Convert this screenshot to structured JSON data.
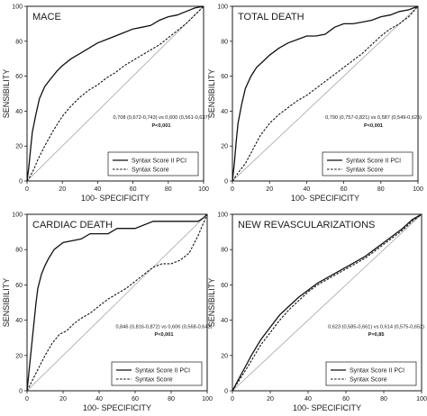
{
  "chart_data": [
    {
      "type": "line",
      "title": "MACE",
      "xlabel": "100- SPECIFICITY",
      "ylabel": "SENSIBILITY",
      "xlim": [
        0,
        100
      ],
      "ylim": [
        0,
        100
      ],
      "xticks": [
        "0",
        "20",
        "40",
        "60",
        "80",
        "100"
      ],
      "yticks": [
        "0",
        "20",
        "40",
        "60",
        "80",
        "100"
      ],
      "annotation": "0,708 (0,672-0,743) vs 0,600 (0,561-0,637)",
      "p_value": "P<0,001",
      "legend_position": "bottom-right",
      "series": [
        {
          "name": "Syntax Score II PCI",
          "style": "solid",
          "x": [
            0,
            1,
            2,
            3,
            5,
            7,
            10,
            13,
            17,
            20,
            25,
            30,
            35,
            40,
            45,
            50,
            55,
            60,
            65,
            70,
            75,
            80,
            85,
            90,
            95,
            100
          ],
          "y": [
            0,
            8,
            18,
            28,
            38,
            47,
            54,
            58,
            63,
            66,
            70,
            73,
            76,
            79,
            81,
            83,
            85,
            87,
            88,
            89,
            92,
            94,
            95,
            97,
            99,
            100
          ]
        },
        {
          "name": "Syntax Score",
          "style": "dashed",
          "x": [
            0,
            2,
            4,
            6,
            10,
            15,
            20,
            25,
            30,
            35,
            40,
            45,
            50,
            55,
            60,
            65,
            70,
            75,
            80,
            85,
            90,
            95,
            100
          ],
          "y": [
            0,
            3,
            7,
            12,
            20,
            29,
            37,
            43,
            48,
            52,
            55,
            59,
            62,
            66,
            69,
            72,
            75,
            78,
            82,
            86,
            90,
            95,
            100
          ]
        }
      ]
    },
    {
      "type": "line",
      "title": "TOTAL DEATH",
      "xlabel": "100- SPECIFICITY",
      "ylabel": "SENSIBILITY",
      "xlim": [
        0,
        100
      ],
      "ylim": [
        0,
        100
      ],
      "xticks": [
        "0",
        "20",
        "40",
        "60",
        "80",
        "100"
      ],
      "yticks": [
        "0",
        "20",
        "40",
        "60",
        "80",
        "100"
      ],
      "annotation": "0,790 (0,757-0,821) vs 0,587 (0,549-0,625)",
      "p_value": "P<0,001",
      "legend_position": "bottom-right",
      "series": [
        {
          "name": "Syntax Score II PCI",
          "style": "solid",
          "x": [
            0,
            1,
            2,
            3,
            5,
            7,
            10,
            13,
            16,
            20,
            25,
            30,
            35,
            40,
            45,
            50,
            55,
            60,
            65,
            70,
            75,
            80,
            85,
            90,
            95,
            100
          ],
          "y": [
            0,
            10,
            22,
            33,
            44,
            53,
            60,
            65,
            68,
            72,
            76,
            79,
            81,
            83,
            83,
            84,
            88,
            90,
            90,
            91,
            92,
            94,
            95,
            97,
            98,
            100
          ]
        },
        {
          "name": "Syntax Score",
          "style": "dashed",
          "x": [
            0,
            2,
            4,
            7,
            10,
            15,
            20,
            25,
            30,
            35,
            40,
            45,
            50,
            55,
            60,
            65,
            70,
            75,
            80,
            85,
            90,
            95,
            100
          ],
          "y": [
            0,
            3,
            6,
            10,
            16,
            26,
            33,
            38,
            42,
            46,
            49,
            53,
            57,
            61,
            65,
            69,
            73,
            78,
            83,
            87,
            90,
            94,
            100
          ]
        }
      ]
    },
    {
      "type": "line",
      "title": "CARDIAC DEATH",
      "xlabel": "100- SPECIFICITY",
      "ylabel": "SENSIBILITY",
      "xlim": [
        0,
        100
      ],
      "ylim": [
        0,
        100
      ],
      "xticks": [
        "0",
        "20",
        "40",
        "60",
        "80",
        "100"
      ],
      "yticks": [
        "0",
        "20",
        "40",
        "60",
        "80",
        "100"
      ],
      "annotation": "0,846 (0,816-0,872) vs 0,606 (0,568-0,643)",
      "p_value": "P<0,001",
      "legend_position": "bottom-right",
      "series": [
        {
          "name": "Syntax Score II PCI",
          "style": "solid",
          "x": [
            0,
            1,
            2,
            3,
            4,
            5,
            6,
            7,
            8,
            10,
            12,
            15,
            20,
            30,
            35,
            40,
            45,
            50,
            60,
            70,
            80,
            90,
            95,
            98,
            100
          ],
          "y": [
            0,
            10,
            20,
            30,
            40,
            50,
            58,
            62,
            66,
            71,
            75,
            80,
            84,
            86,
            89,
            89,
            89,
            92,
            92,
            96,
            96,
            96,
            96,
            98,
            100
          ]
        },
        {
          "name": "Syntax Score",
          "style": "dashed",
          "x": [
            0,
            2,
            4,
            6,
            8,
            10,
            14,
            18,
            22,
            26,
            30,
            35,
            40,
            45,
            50,
            55,
            60,
            65,
            70,
            75,
            80,
            85,
            90,
            95,
            100
          ],
          "y": [
            0,
            4,
            8,
            12,
            16,
            20,
            27,
            32,
            34,
            38,
            41,
            44,
            48,
            52,
            55,
            58,
            62,
            66,
            70,
            72,
            72,
            74,
            78,
            88,
            100
          ]
        }
      ]
    },
    {
      "type": "line",
      "title": "NEW REVASCULARIZATIONS",
      "xlabel": "100- SPECIFICITY",
      "ylabel": "SENSIBILITY",
      "xlim": [
        0,
        100
      ],
      "ylim": [
        0,
        100
      ],
      "xticks": [
        "0",
        "20",
        "40",
        "60",
        "80",
        "100"
      ],
      "yticks": [
        "0",
        "20",
        "40",
        "60",
        "80",
        "100"
      ],
      "annotation": "0,623 (0,585-0,661) vs 0,614 (0,575-0,652)",
      "p_value": "P=0,85",
      "legend_position": "bottom-right",
      "series": [
        {
          "name": "Syntax Score II PCI",
          "style": "solid",
          "x": [
            0,
            3,
            6,
            10,
            15,
            20,
            25,
            30,
            35,
            40,
            45,
            50,
            55,
            60,
            65,
            70,
            75,
            80,
            85,
            90,
            95,
            100
          ],
          "y": [
            0,
            6,
            12,
            20,
            29,
            36,
            43,
            48,
            53,
            57,
            61,
            64,
            67,
            70,
            73,
            76,
            80,
            84,
            88,
            92,
            97,
            100
          ]
        },
        {
          "name": "Syntax Score",
          "style": "dashed",
          "x": [
            0,
            3,
            6,
            10,
            15,
            20,
            25,
            30,
            35,
            40,
            45,
            50,
            55,
            60,
            65,
            70,
            75,
            80,
            85,
            90,
            95,
            100
          ],
          "y": [
            0,
            5,
            10,
            17,
            26,
            33,
            40,
            46,
            51,
            56,
            60,
            63,
            66,
            69,
            72,
            75,
            79,
            83,
            87,
            91,
            96,
            100
          ]
        }
      ]
    }
  ]
}
